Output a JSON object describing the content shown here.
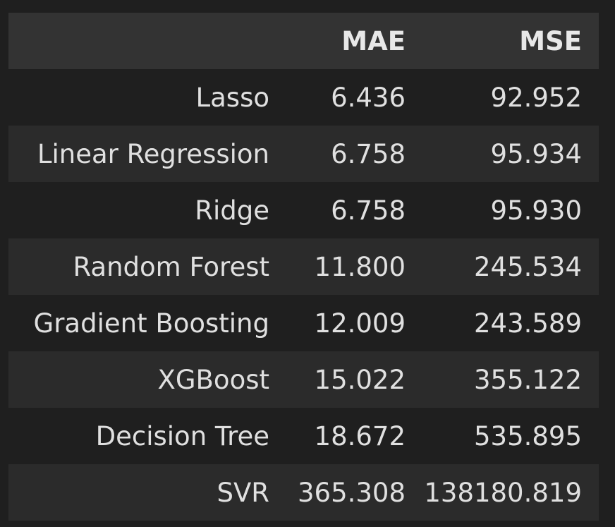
{
  "table": {
    "columns": [
      "",
      "MAE",
      "MSE"
    ],
    "rows": [
      {
        "model": "Lasso",
        "mae": "6.436",
        "mse": "92.952"
      },
      {
        "model": "Linear Regression",
        "mae": "6.758",
        "mse": "95.934"
      },
      {
        "model": "Ridge",
        "mae": "6.758",
        "mse": "95.930"
      },
      {
        "model": "Random Forest",
        "mae": "11.800",
        "mse": "245.534"
      },
      {
        "model": "Gradient Boosting",
        "mae": "12.009",
        "mse": "243.589"
      },
      {
        "model": "XGBoost",
        "mae": "15.022",
        "mse": "355.122"
      },
      {
        "model": "Decision Tree",
        "mae": "18.672",
        "mse": "535.895"
      },
      {
        "model": "SVR",
        "mae": "365.308",
        "mse": "138180.819"
      }
    ]
  },
  "colors": {
    "background": "#1f1f1f",
    "header_background": "#333333",
    "striped_row": "#2b2b2b",
    "text": "#e0e0e0"
  }
}
